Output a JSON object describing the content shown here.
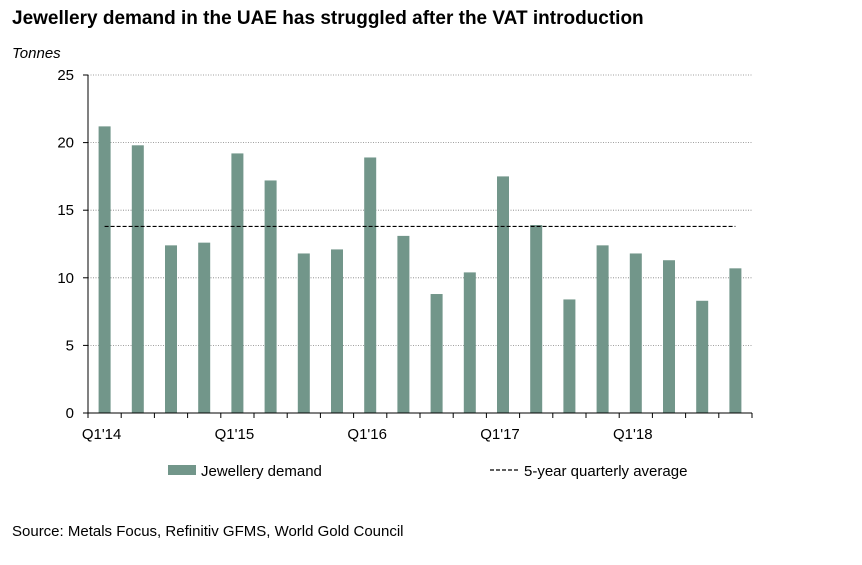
{
  "chart_data": {
    "type": "bar",
    "title": "Jewellery demand in the UAE has struggled after the VAT introduction",
    "ylabel": "Tonnes",
    "xlabel": "",
    "ylim": [
      0,
      25
    ],
    "yticks": [
      0,
      5,
      10,
      15,
      20,
      25
    ],
    "categories": [
      "Q1'14",
      "Q2'14",
      "Q3'14",
      "Q4'14",
      "Q1'15",
      "Q2'15",
      "Q3'15",
      "Q4'15",
      "Q1'16",
      "Q2'16",
      "Q3'16",
      "Q4'16",
      "Q1'17",
      "Q2'17",
      "Q3'17",
      "Q4'17",
      "Q1'18",
      "Q2'18",
      "Q3'18",
      "Q4'18"
    ],
    "xtick_labels": [
      "Q1'14",
      "Q1'15",
      "Q1'16",
      "Q1'17",
      "Q1'18"
    ],
    "series": [
      {
        "name": "Jewellery demand",
        "color": "#72968a",
        "values": [
          21.2,
          19.8,
          12.4,
          12.6,
          19.2,
          17.2,
          11.8,
          12.1,
          18.9,
          13.1,
          8.8,
          10.4,
          17.5,
          13.9,
          8.4,
          12.4,
          11.8,
          11.3,
          8.3,
          10.7
        ]
      },
      {
        "name": "5-year quarterly average",
        "type": "line",
        "style": "dashed",
        "color": "#000000",
        "value": 13.8
      }
    ],
    "legend_labels": [
      "Jewellery demand",
      "5-year quarterly average"
    ],
    "legend_placement": "bottom",
    "grid": true,
    "source": "Source: Metals Focus, Refinitiv GFMS, World Gold Council"
  }
}
